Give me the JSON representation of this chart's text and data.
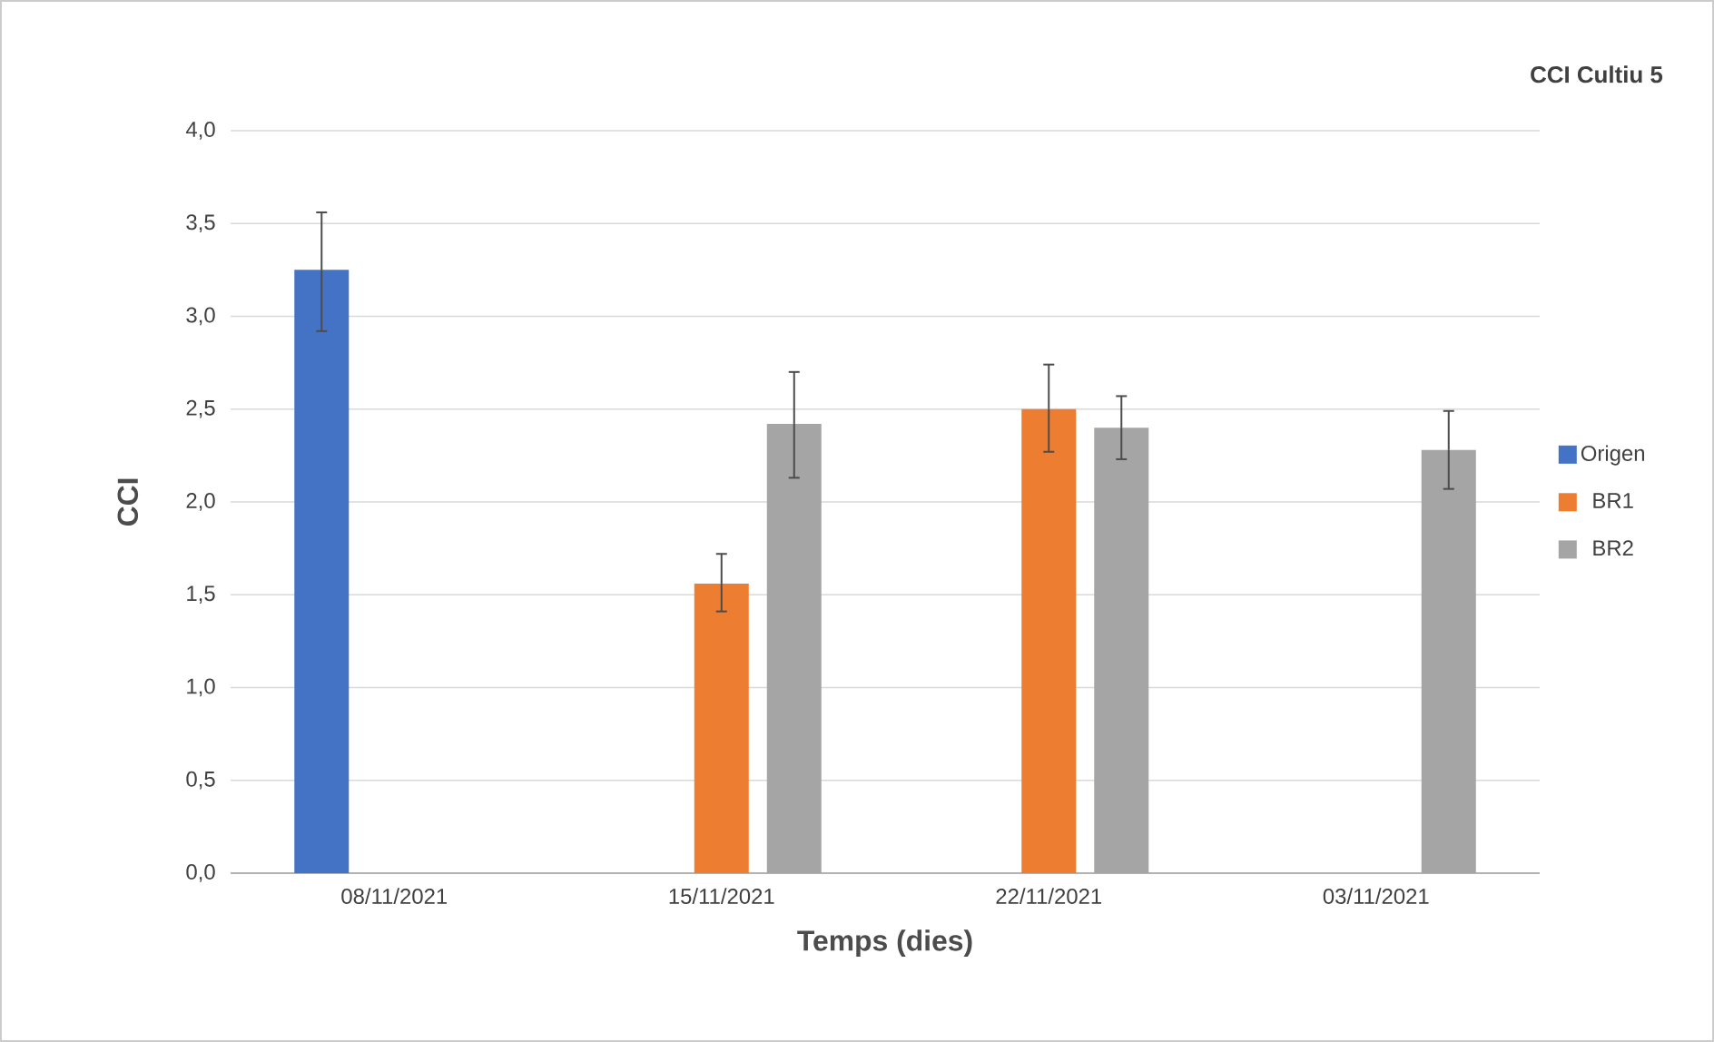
{
  "chart_data": {
    "type": "bar",
    "title": "CCI Cultiu 5",
    "xlabel": "Temps (dies)",
    "ylabel": "CCI",
    "categories": [
      "08/11/2021",
      "15/11/2021",
      "22/11/2021",
      "03/11/2021"
    ],
    "series": [
      {
        "name": "Origen",
        "color": "#4472c4",
        "values": [
          3.25,
          null,
          null,
          null
        ],
        "errors": [
          [
            2.92,
            3.56
          ],
          null,
          null,
          null
        ]
      },
      {
        "name": "BR1",
        "color": "#ed7d31",
        "values": [
          null,
          1.56,
          2.5,
          null
        ],
        "errors": [
          null,
          [
            1.41,
            1.72
          ],
          [
            2.27,
            2.74
          ],
          null
        ]
      },
      {
        "name": "BR2",
        "color": "#a5a5a5",
        "values": [
          null,
          2.42,
          2.4,
          2.28
        ],
        "errors": [
          null,
          [
            2.13,
            2.7
          ],
          [
            2.23,
            2.57
          ],
          [
            2.07,
            2.49
          ]
        ]
      }
    ],
    "ylim": [
      0,
      4
    ],
    "yticks": [
      {
        "value": 0,
        "label": "0,0"
      },
      {
        "value": 0.5,
        "label": "0,5"
      },
      {
        "value": 1,
        "label": "1,0"
      },
      {
        "value": 1.5,
        "label": "1,5"
      },
      {
        "value": 2,
        "label": "2,0"
      },
      {
        "value": 2.5,
        "label": "2,5"
      },
      {
        "value": 3,
        "label": "3,0"
      },
      {
        "value": 3.5,
        "label": "3,5"
      },
      {
        "value": 4,
        "label": "4,0"
      }
    ],
    "grid": "y",
    "legend": "right"
  }
}
